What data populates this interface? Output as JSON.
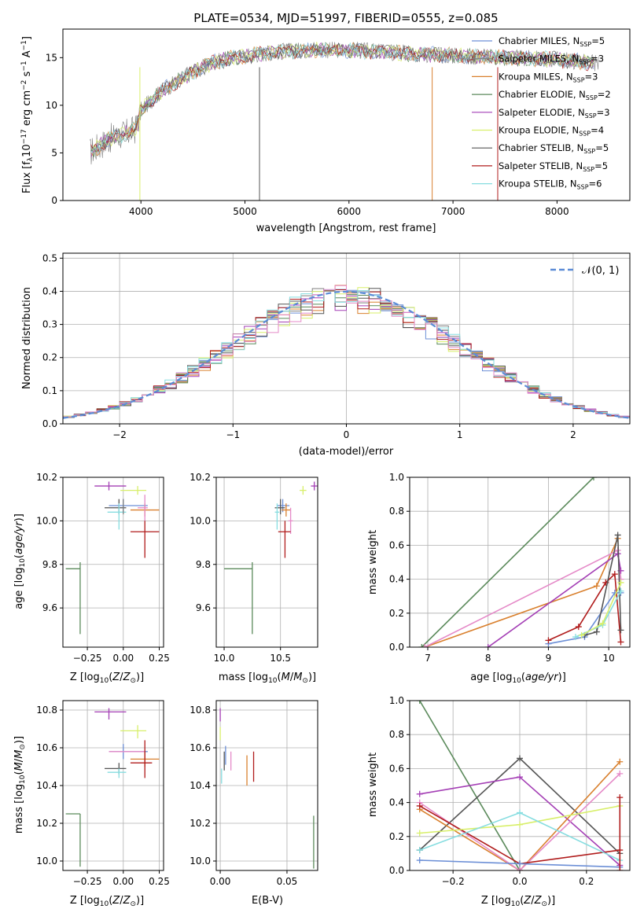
{
  "figure": {
    "title": "PLATE=0534, MJD=51997, FIBERID=0555, z=0.085"
  },
  "colors": {
    "chabrier_miles": "#6c8fd6",
    "salpeter_miles": "#7f7f7f",
    "kroupa_miles": "#d9802e",
    "chabrier_elodie": "#5b8a5b",
    "salpeter_elodie": "#a43fb5",
    "kroupa_elodie": "#d8ef6a",
    "chabrier_stelib": "#555555",
    "salpeter_stelib": "#b01c1c",
    "kroupa_stelib": "#86dde0",
    "pink": "#e58ac8",
    "normal_curve": "#5b8bd6"
  },
  "chart_data": [
    {
      "id": "spectrum",
      "type": "line",
      "xlabel": "wavelength [Angstrom, rest frame]",
      "ylabel": "Flux [f",
      "xlim": [
        3250,
        8700
      ],
      "ylim": [
        0,
        18
      ],
      "xticks": [
        "4000",
        "5000",
        "6000",
        "7000",
        "8000"
      ],
      "yticks": [
        "0",
        "5",
        "10",
        "15"
      ],
      "continuum": {
        "x": [
          3500,
          3700,
          3850,
          3950,
          4000,
          4200,
          4500,
          4700,
          4900,
          5200,
          5600,
          6000,
          6500,
          7000,
          7500,
          8000,
          8500
        ],
        "y": [
          5.0,
          6.5,
          7.0,
          7.5,
          9.5,
          11.5,
          13.5,
          14.5,
          15.0,
          15.5,
          15.8,
          15.8,
          15.5,
          15.2,
          15.0,
          14.8,
          14.3
        ]
      },
      "legend": {
        "position": "upper right",
        "entries": [
          {
            "label": "Chabrier MILES, N",
            "sub": "SSP",
            "tail": "=5",
            "color": "#6c8fd6"
          },
          {
            "label": "Salpeter MILES, N",
            "sub": "SSP",
            "tail": "=3",
            "color": "#7f7f7f"
          },
          {
            "label": "Kroupa MILES, N",
            "sub": "SSP",
            "tail": "=3",
            "color": "#d9802e"
          },
          {
            "label": "Chabrier ELODIE, N",
            "sub": "SSP",
            "tail": "=2",
            "color": "#5b8a5b"
          },
          {
            "label": "Salpeter ELODIE, N",
            "sub": "SSP",
            "tail": "=3",
            "color": "#a43fb5"
          },
          {
            "label": "Kroupa ELODIE, N",
            "sub": "SSP",
            "tail": "=4",
            "color": "#d8ef6a"
          },
          {
            "label": "Chabrier STELIB, N",
            "sub": "SSP",
            "tail": "=5",
            "color": "#555555"
          },
          {
            "label": "Salpeter STELIB, N",
            "sub": "SSP",
            "tail": "=5",
            "color": "#b01c1c"
          },
          {
            "label": "Kroupa STELIB, N",
            "sub": "SSP",
            "tail": "=6",
            "color": "#86dde0"
          }
        ]
      }
    },
    {
      "id": "residuals",
      "type": "line",
      "xlabel": "(data-model)/error",
      "ylabel": "Normed distribution",
      "xlim": [
        -2.5,
        2.5
      ],
      "ylim": [
        0,
        0.515
      ],
      "xticks": [
        "−2",
        "−1",
        "0",
        "1",
        "2"
      ],
      "yticks": [
        "0.0",
        "0.1",
        "0.2",
        "0.3",
        "0.4",
        "0.5"
      ],
      "legend": {
        "position": "upper right",
        "entries": [
          {
            "label": "𝒩(0, 1)",
            "color": "#5b8bd6"
          }
        ]
      }
    },
    {
      "id": "age_vs_z",
      "type": "scatter",
      "xlabel": "Z [log",
      "ylabel": "age  [log",
      "xlim": [
        -0.42,
        0.28
      ],
      "ylim": [
        9.42,
        10.2
      ],
      "xticks": [
        "−0.25",
        "0.00",
        "0.25"
      ],
      "yticks": [
        "9.6",
        "9.8",
        "10.0",
        "10.2"
      ],
      "points": [
        {
          "x": -0.3,
          "y": 9.78,
          "xerr": [
            0.1,
            0.0
          ],
          "yerr": [
            0.3,
            0.03
          ],
          "color": "#5b8a5b"
        },
        {
          "x": -0.1,
          "y": 10.16,
          "xerr": [
            0.1,
            0.12
          ],
          "yerr": [
            0.02,
            0.02
          ],
          "color": "#a43fb5"
        },
        {
          "x": 0.1,
          "y": 10.14,
          "xerr": [
            0.12,
            0.06
          ],
          "yerr": [
            0.02,
            0.02
          ],
          "color": "#d8ef6a"
        },
        {
          "x": 0.0,
          "y": 10.07,
          "xerr": [
            0.1,
            0.17
          ],
          "yerr": [
            0.03,
            0.03
          ],
          "color": "#6c8fd6"
        },
        {
          "x": -0.03,
          "y": 10.06,
          "xerr": [
            0.1,
            0.05
          ],
          "yerr": [
            0.03,
            0.04
          ],
          "color": "#555555"
        },
        {
          "x": 0.15,
          "y": 10.05,
          "xerr": [
            0.1,
            0.1
          ],
          "yerr": [
            0.03,
            0.03
          ],
          "color": "#d9802e"
        },
        {
          "x": -0.03,
          "y": 10.04,
          "xerr": [
            0.08,
            0.05
          ],
          "yerr": [
            0.08,
            0.04
          ],
          "color": "#86dde0"
        },
        {
          "x": 0.15,
          "y": 10.06,
          "xerr": [
            0.05,
            0.02
          ],
          "yerr": [
            0.06,
            0.06
          ],
          "color": "#e58ac8"
        },
        {
          "x": 0.15,
          "y": 9.95,
          "xerr": [
            0.1,
            0.1
          ],
          "yerr": [
            0.12,
            0.05
          ],
          "color": "#b01c1c"
        },
        {
          "x": 0.0,
          "y": 10.07,
          "xerr": [
            0.0,
            0.0
          ],
          "yerr": [
            0.04,
            0.03
          ],
          "color": "#7f7f7f"
        }
      ]
    },
    {
      "id": "age_vs_mass",
      "type": "scatter",
      "xlabel": "mass [log",
      "ylabel": "",
      "xlim": [
        9.93,
        10.83
      ],
      "ylim": [
        9.42,
        10.2
      ],
      "xticks": [
        "10.0",
        "10.5"
      ],
      "yticks": [
        "9.6",
        "9.8",
        "10.0",
        "10.2"
      ],
      "points": [
        {
          "x": 10.25,
          "y": 9.78,
          "xerr": [
            0.25,
            0.0
          ],
          "yerr": [
            0.3,
            0.03
          ],
          "color": "#5b8a5b"
        },
        {
          "x": 10.8,
          "y": 10.16,
          "xerr": [
            0.03,
            0.03
          ],
          "yerr": [
            0.02,
            0.02
          ],
          "color": "#a43fb5"
        },
        {
          "x": 10.7,
          "y": 10.14,
          "xerr": [
            0.03,
            0.03
          ],
          "yerr": [
            0.02,
            0.02
          ],
          "color": "#d8ef6a"
        },
        {
          "x": 10.52,
          "y": 10.07,
          "xerr": [
            0.05,
            0.06
          ],
          "yerr": [
            0.03,
            0.03
          ],
          "color": "#6c8fd6"
        },
        {
          "x": 10.5,
          "y": 10.06,
          "xerr": [
            0.05,
            0.04
          ],
          "yerr": [
            0.03,
            0.04
          ],
          "color": "#555555"
        },
        {
          "x": 10.55,
          "y": 10.05,
          "xerr": [
            0.04,
            0.04
          ],
          "yerr": [
            0.03,
            0.03
          ],
          "color": "#d9802e"
        },
        {
          "x": 10.47,
          "y": 10.04,
          "xerr": [
            0.02,
            0.02
          ],
          "yerr": [
            0.08,
            0.04
          ],
          "color": "#86dde0"
        },
        {
          "x": 10.59,
          "y": 10.0,
          "xerr": [
            0.02,
            0.02
          ],
          "yerr": [
            0.06,
            0.06
          ],
          "color": "#e58ac8"
        },
        {
          "x": 10.54,
          "y": 9.95,
          "xerr": [
            0.06,
            0.05
          ],
          "yerr": [
            0.12,
            0.05
          ],
          "color": "#b01c1c"
        }
      ]
    },
    {
      "id": "massweight_vs_age",
      "type": "line",
      "xlabel": "age  [log",
      "ylabel": "mass weight",
      "xlim": [
        6.7,
        10.35
      ],
      "ylim": [
        0,
        1
      ],
      "xticks": [
        "7",
        "8",
        "9",
        "10"
      ],
      "yticks": [
        "0.0",
        "0.2",
        "0.4",
        "0.6",
        "0.8",
        "1.0"
      ],
      "series": [
        {
          "color": "#5b8a5b",
          "x": [
            6.9,
            9.75
          ],
          "y": [
            0.0,
            1.0
          ]
        },
        {
          "color": "#d9802e",
          "x": [
            6.95,
            9.8,
            10.15
          ],
          "y": [
            0.0,
            0.36,
            0.64
          ]
        },
        {
          "color": "#e58ac8",
          "x": [
            6.95,
            10.15,
            10.2
          ],
          "y": [
            0.0,
            0.57,
            0.4
          ]
        },
        {
          "color": "#a43fb5",
          "x": [
            8.0,
            10.15,
            10.2
          ],
          "y": [
            0.0,
            0.55,
            0.45
          ]
        },
        {
          "color": "#6c8fd6",
          "x": [
            9.0,
            9.6,
            10.1,
            10.2
          ],
          "y": [
            0.02,
            0.06,
            0.32,
            0.32
          ]
        },
        {
          "color": "#b01c1c",
          "x": [
            9.0,
            9.5,
            9.95,
            10.1,
            10.2
          ],
          "y": [
            0.04,
            0.12,
            0.38,
            0.43,
            0.03
          ]
        },
        {
          "color": "#555555",
          "x": [
            9.6,
            9.8,
            10.15,
            10.2
          ],
          "y": [
            0.07,
            0.09,
            0.66,
            0.1
          ]
        },
        {
          "color": "#86dde0",
          "x": [
            9.45,
            9.9,
            10.2
          ],
          "y": [
            0.06,
            0.13,
            0.33
          ]
        },
        {
          "color": "#d8ef6a",
          "x": [
            9.55,
            9.9,
            10.2
          ],
          "y": [
            0.07,
            0.14,
            0.38
          ]
        }
      ]
    },
    {
      "id": "mass_vs_z",
      "type": "scatter",
      "xlabel": "Z [log",
      "ylabel": "mass [log",
      "xlim": [
        -0.42,
        0.28
      ],
      "ylim": [
        9.95,
        10.85
      ],
      "xticks": [
        "−0.25",
        "0.00",
        "0.25"
      ],
      "yticks": [
        "10.0",
        "10.2",
        "10.4",
        "10.6",
        "10.8"
      ],
      "points": [
        {
          "x": -0.3,
          "y": 10.25,
          "xerr": [
            0.1,
            0.0
          ],
          "yerr": [
            0.28,
            0.0
          ],
          "color": "#5b8a5b"
        },
        {
          "x": -0.1,
          "y": 10.79,
          "xerr": [
            0.1,
            0.12
          ],
          "yerr": [
            0.04,
            0.02
          ],
          "color": "#a43fb5"
        },
        {
          "x": 0.1,
          "y": 10.69,
          "xerr": [
            0.12,
            0.06
          ],
          "yerr": [
            0.04,
            0.03
          ],
          "color": "#d8ef6a"
        },
        {
          "x": 0.0,
          "y": 10.58,
          "xerr": [
            0.1,
            0.17
          ],
          "yerr": [
            0.04,
            0.04
          ],
          "color": "#6c8fd6"
        },
        {
          "x": 0.13,
          "y": 10.58,
          "xerr": [
            0.23,
            0.02
          ],
          "yerr": [
            0.0,
            0.0
          ],
          "color": "#e58ac8"
        },
        {
          "x": 0.15,
          "y": 10.54,
          "xerr": [
            0.1,
            0.1
          ],
          "yerr": [
            0.04,
            0.04
          ],
          "color": "#d9802e"
        },
        {
          "x": 0.15,
          "y": 10.52,
          "xerr": [
            0.1,
            0.05
          ],
          "yerr": [
            0.08,
            0.12
          ],
          "color": "#b01c1c"
        },
        {
          "x": -0.03,
          "y": 10.49,
          "xerr": [
            0.1,
            0.05
          ],
          "yerr": [
            0.03,
            0.03
          ],
          "color": "#555555"
        },
        {
          "x": -0.03,
          "y": 10.47,
          "xerr": [
            0.08,
            0.05
          ],
          "yerr": [
            0.03,
            0.02
          ],
          "color": "#86dde0"
        }
      ]
    },
    {
      "id": "mass_vs_ebv",
      "type": "scatter",
      "xlabel": "E(B-V)",
      "ylabel": "",
      "xlim": [
        -0.003,
        0.073
      ],
      "ylim": [
        9.95,
        10.85
      ],
      "xticks": [
        "0.00",
        "0.05"
      ],
      "yticks": [
        "10.0",
        "10.2",
        "10.4",
        "10.6",
        "10.8"
      ],
      "points": [
        {
          "x": 0.0,
          "y": 10.78,
          "yerr": [
            0.04,
            0.03
          ],
          "color": "#a43fb5"
        },
        {
          "x": 0.0,
          "y": 10.68,
          "yerr": [
            0.04,
            0.03
          ],
          "color": "#d8ef6a"
        },
        {
          "x": 0.001,
          "y": 10.45,
          "yerr": [
            0.04,
            0.04
          ],
          "color": "#86dde0"
        },
        {
          "x": 0.003,
          "y": 10.53,
          "yerr": [
            0.05,
            0.05
          ],
          "color": "#555555"
        },
        {
          "x": 0.004,
          "y": 10.56,
          "yerr": [
            0.05,
            0.05
          ],
          "color": "#6c8fd6"
        },
        {
          "x": 0.008,
          "y": 10.53,
          "yerr": [
            0.05,
            0.05
          ],
          "color": "#e58ac8"
        },
        {
          "x": 0.02,
          "y": 10.48,
          "yerr": [
            0.08,
            0.08
          ],
          "color": "#d9802e"
        },
        {
          "x": 0.025,
          "y": 10.5,
          "yerr": [
            0.08,
            0.08
          ],
          "color": "#b01c1c"
        },
        {
          "x": 0.07,
          "y": 10.1,
          "yerr": [
            0.14,
            0.14
          ],
          "color": "#5b8a5b"
        }
      ]
    },
    {
      "id": "massweight_vs_z",
      "type": "line",
      "xlabel": "Z [log",
      "ylabel": "mass weight",
      "xlim": [
        -0.33,
        0.33
      ],
      "ylim": [
        0,
        1
      ],
      "xticks": [
        "−0.2",
        "0.0",
        "0.2"
      ],
      "yticks": [
        "0.0",
        "0.2",
        "0.4",
        "0.6",
        "0.8",
        "1.0"
      ],
      "series": [
        {
          "color": "#5b8a5b",
          "x": [
            -0.3,
            0.0
          ],
          "y": [
            1.0,
            0.0
          ]
        },
        {
          "color": "#555555",
          "x": [
            -0.3,
            0.0,
            0.3
          ],
          "y": [
            0.12,
            0.66,
            0.1
          ]
        },
        {
          "color": "#a43fb5",
          "x": [
            -0.3,
            0.0,
            0.3
          ],
          "y": [
            0.45,
            0.55,
            0.03
          ]
        },
        {
          "color": "#d9802e",
          "x": [
            -0.3,
            0.0,
            0.3
          ],
          "y": [
            0.36,
            0.0,
            0.64
          ]
        },
        {
          "color": "#e58ac8",
          "x": [
            -0.3,
            0.0,
            0.3
          ],
          "y": [
            0.4,
            0.0,
            0.57
          ]
        },
        {
          "color": "#b01c1c",
          "x": [
            -0.3,
            0.0,
            0.3
          ],
          "y": [
            0.38,
            0.04,
            0.12
          ]
        },
        {
          "color": "#d8ef6a",
          "x": [
            -0.3,
            0.0,
            0.3
          ],
          "y": [
            0.22,
            0.27,
            0.38
          ]
        },
        {
          "color": "#86dde0",
          "x": [
            -0.3,
            0.0,
            0.3
          ],
          "y": [
            0.12,
            0.34,
            0.06
          ]
        },
        {
          "color": "#6c8fd6",
          "x": [
            -0.3,
            0.0,
            0.3
          ],
          "y": [
            0.06,
            0.04,
            0.02
          ]
        },
        {
          "color": "#b01c1c",
          "x": [
            0.3,
            0.3
          ],
          "y": [
            0.0,
            0.43
          ]
        }
      ]
    }
  ],
  "labels": {
    "unit_zsun": "Z",
    "unit_msun": "M",
    "unit_age": "age/yr"
  }
}
